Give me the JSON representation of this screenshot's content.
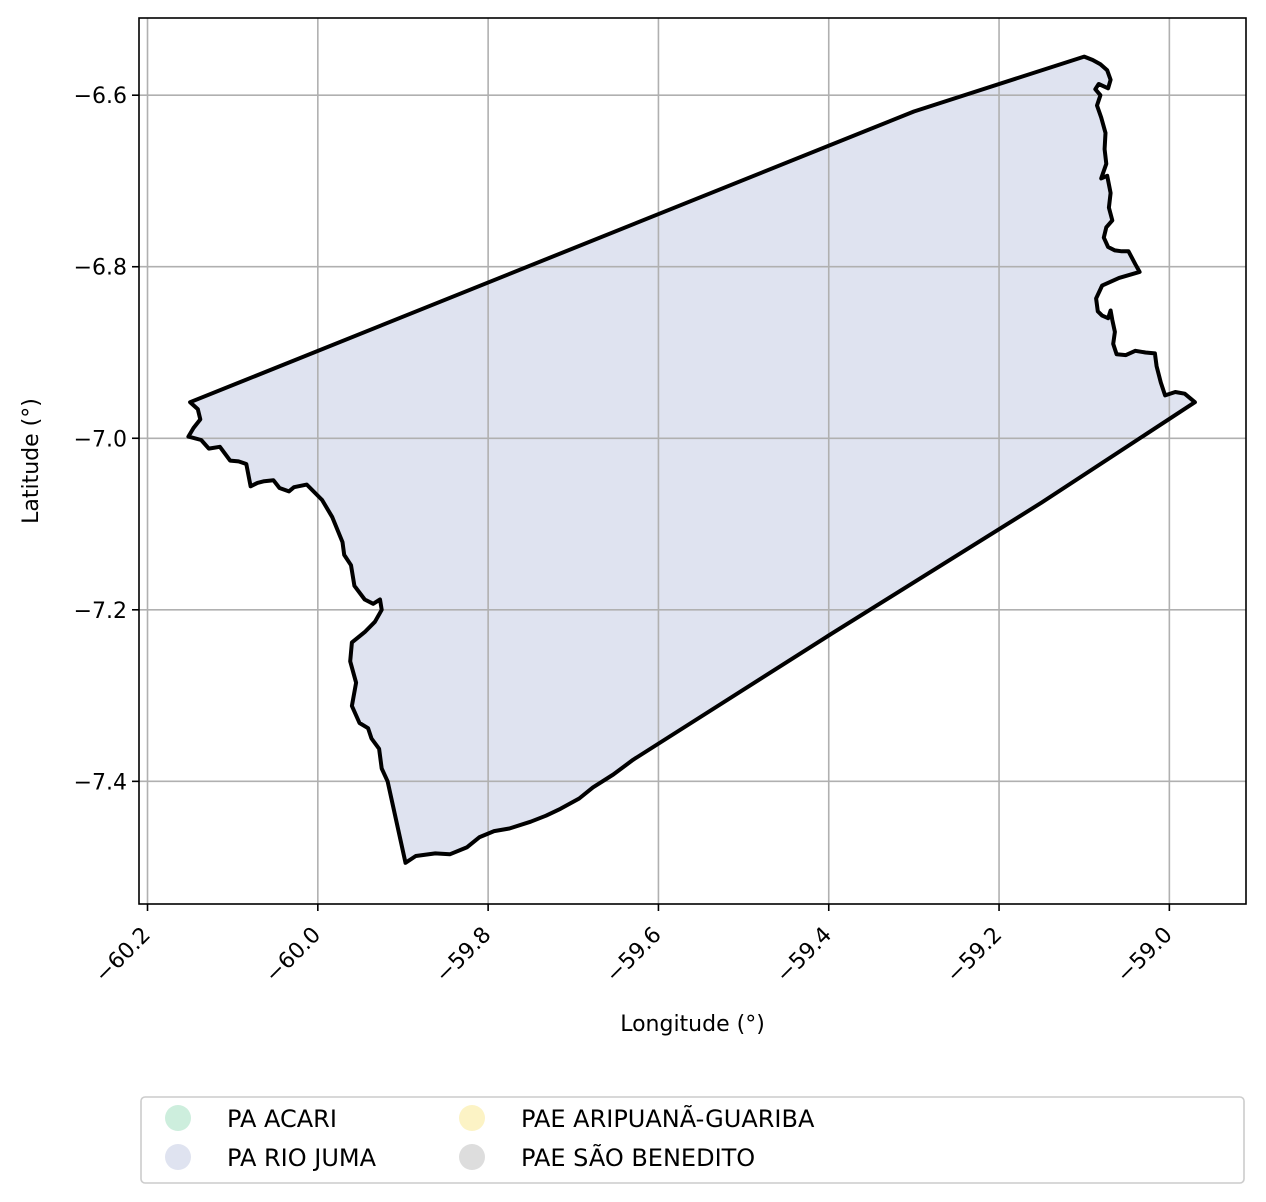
{
  "chart_data": {
    "type": "map",
    "xlabel": "Longitude (°)",
    "ylabel": "Latitude (°)",
    "xlim": [
      -60.21,
      -58.91
    ],
    "ylim": [
      -7.543,
      -6.51
    ],
    "grid": true,
    "x_ticks": [
      {
        "value": -60.2,
        "label": "−60.2"
      },
      {
        "value": -60.0,
        "label": "−60.0"
      },
      {
        "value": -59.8,
        "label": "−59.8"
      },
      {
        "value": -59.6,
        "label": "−59.6"
      },
      {
        "value": -59.4,
        "label": "−59.4"
      },
      {
        "value": -59.2,
        "label": "−59.2"
      },
      {
        "value": -59.0,
        "label": "−59.0"
      }
    ],
    "y_ticks": [
      {
        "value": -6.6,
        "label": "−6.6"
      },
      {
        "value": -6.8,
        "label": "−6.8"
      },
      {
        "value": -7.0,
        "label": "−7.0"
      },
      {
        "value": -7.2,
        "label": "−7.2"
      },
      {
        "value": -7.4,
        "label": "−7.4"
      }
    ],
    "polygon": {
      "name": "PA RIO JUMA",
      "fill": "#dfe3f0",
      "stroke": "#000000",
      "coords": [
        [
          -60.15,
          -6.958
        ],
        [
          -60.141,
          -6.966
        ],
        [
          -60.138,
          -6.978
        ],
        [
          -60.146,
          -6.988
        ],
        [
          -60.152,
          -6.998
        ],
        [
          -60.137,
          -7.002
        ],
        [
          -60.128,
          -7.012
        ],
        [
          -60.115,
          -7.01
        ],
        [
          -60.103,
          -7.026
        ],
        [
          -60.093,
          -7.027
        ],
        [
          -60.084,
          -7.03
        ],
        [
          -60.079,
          -7.056
        ],
        [
          -60.071,
          -7.052
        ],
        [
          -60.063,
          -7.05
        ],
        [
          -60.052,
          -7.049
        ],
        [
          -60.045,
          -7.058
        ],
        [
          -60.034,
          -7.062
        ],
        [
          -60.028,
          -7.057
        ],
        [
          -60.013,
          -7.054
        ],
        [
          -59.995,
          -7.072
        ],
        [
          -59.983,
          -7.092
        ],
        [
          -59.971,
          -7.121
        ],
        [
          -59.969,
          -7.136
        ],
        [
          -59.961,
          -7.148
        ],
        [
          -59.957,
          -7.172
        ],
        [
          -59.945,
          -7.188
        ],
        [
          -59.935,
          -7.193
        ],
        [
          -59.927,
          -7.188
        ],
        [
          -59.925,
          -7.2
        ],
        [
          -59.933,
          -7.214
        ],
        [
          -59.945,
          -7.226
        ],
        [
          -59.96,
          -7.238
        ],
        [
          -59.962,
          -7.26
        ],
        [
          -59.955,
          -7.285
        ],
        [
          -59.96,
          -7.312
        ],
        [
          -59.951,
          -7.332
        ],
        [
          -59.941,
          -7.338
        ],
        [
          -59.937,
          -7.35
        ],
        [
          -59.928,
          -7.362
        ],
        [
          -59.925,
          -7.385
        ],
        [
          -59.918,
          -7.4
        ],
        [
          -59.897,
          -7.495
        ],
        [
          -59.885,
          -7.487
        ],
        [
          -59.862,
          -7.484
        ],
        [
          -59.845,
          -7.485
        ],
        [
          -59.825,
          -7.477
        ],
        [
          -59.81,
          -7.465
        ],
        [
          -59.793,
          -7.458
        ],
        [
          -59.775,
          -7.455
        ],
        [
          -59.75,
          -7.447
        ],
        [
          -59.732,
          -7.44
        ],
        [
          -59.715,
          -7.432
        ],
        [
          -59.693,
          -7.42
        ],
        [
          -59.677,
          -7.407
        ],
        [
          -59.653,
          -7.392
        ],
        [
          -59.63,
          -7.375
        ],
        [
          -59.4,
          -7.23
        ],
        [
          -59.15,
          -7.075
        ],
        [
          -58.97,
          -6.958
        ],
        [
          -58.982,
          -6.948
        ],
        [
          -58.993,
          -6.946
        ],
        [
          -59.005,
          -6.95
        ],
        [
          -59.01,
          -6.935
        ],
        [
          -59.015,
          -6.916
        ],
        [
          -59.017,
          -6.901
        ],
        [
          -59.028,
          -6.9
        ],
        [
          -59.04,
          -6.898
        ],
        [
          -59.051,
          -6.903
        ],
        [
          -59.062,
          -6.902
        ],
        [
          -59.066,
          -6.89
        ],
        [
          -59.064,
          -6.876
        ],
        [
          -59.067,
          -6.862
        ],
        [
          -59.069,
          -6.851
        ],
        [
          -59.072,
          -6.86
        ],
        [
          -59.079,
          -6.857
        ],
        [
          -59.084,
          -6.852
        ],
        [
          -59.086,
          -6.837
        ],
        [
          -59.079,
          -6.822
        ],
        [
          -59.059,
          -6.813
        ],
        [
          -59.035,
          -6.806
        ],
        [
          -59.04,
          -6.797
        ],
        [
          -59.048,
          -6.782
        ],
        [
          -59.056,
          -6.782
        ],
        [
          -59.064,
          -6.781
        ],
        [
          -59.072,
          -6.777
        ],
        [
          -59.077,
          -6.766
        ],
        [
          -59.074,
          -6.754
        ],
        [
          -59.067,
          -6.746
        ],
        [
          -59.071,
          -6.731
        ],
        [
          -59.069,
          -6.714
        ],
        [
          -59.073,
          -6.694
        ],
        [
          -59.08,
          -6.697
        ],
        [
          -59.074,
          -6.68
        ],
        [
          -59.076,
          -6.663
        ],
        [
          -59.075,
          -6.644
        ],
        [
          -59.08,
          -6.626
        ],
        [
          -59.085,
          -6.612
        ],
        [
          -59.081,
          -6.6
        ],
        [
          -59.087,
          -6.593
        ],
        [
          -59.083,
          -6.587
        ],
        [
          -59.072,
          -6.592
        ],
        [
          -59.069,
          -6.582
        ],
        [
          -59.073,
          -6.571
        ],
        [
          -59.081,
          -6.564
        ],
        [
          -59.09,
          -6.559
        ],
        [
          -59.1,
          -6.555
        ],
        [
          -59.3,
          -6.619
        ],
        [
          -60.15,
          -6.958
        ]
      ]
    },
    "legend": {
      "placement": "bottom-center (outside plot)",
      "ncol": 3,
      "entries": [
        {
          "label": "PA ACARI",
          "color": "#cdeedd"
        },
        {
          "label": "PA RIO JUMA",
          "color": "#dfe3f0"
        },
        {
          "label": "PAE ARIPUANÃ-GUARIBA",
          "color": "#fcf3c5"
        },
        {
          "label": "PAE SÃO BENEDITO",
          "color": "#dddddd"
        }
      ]
    }
  }
}
